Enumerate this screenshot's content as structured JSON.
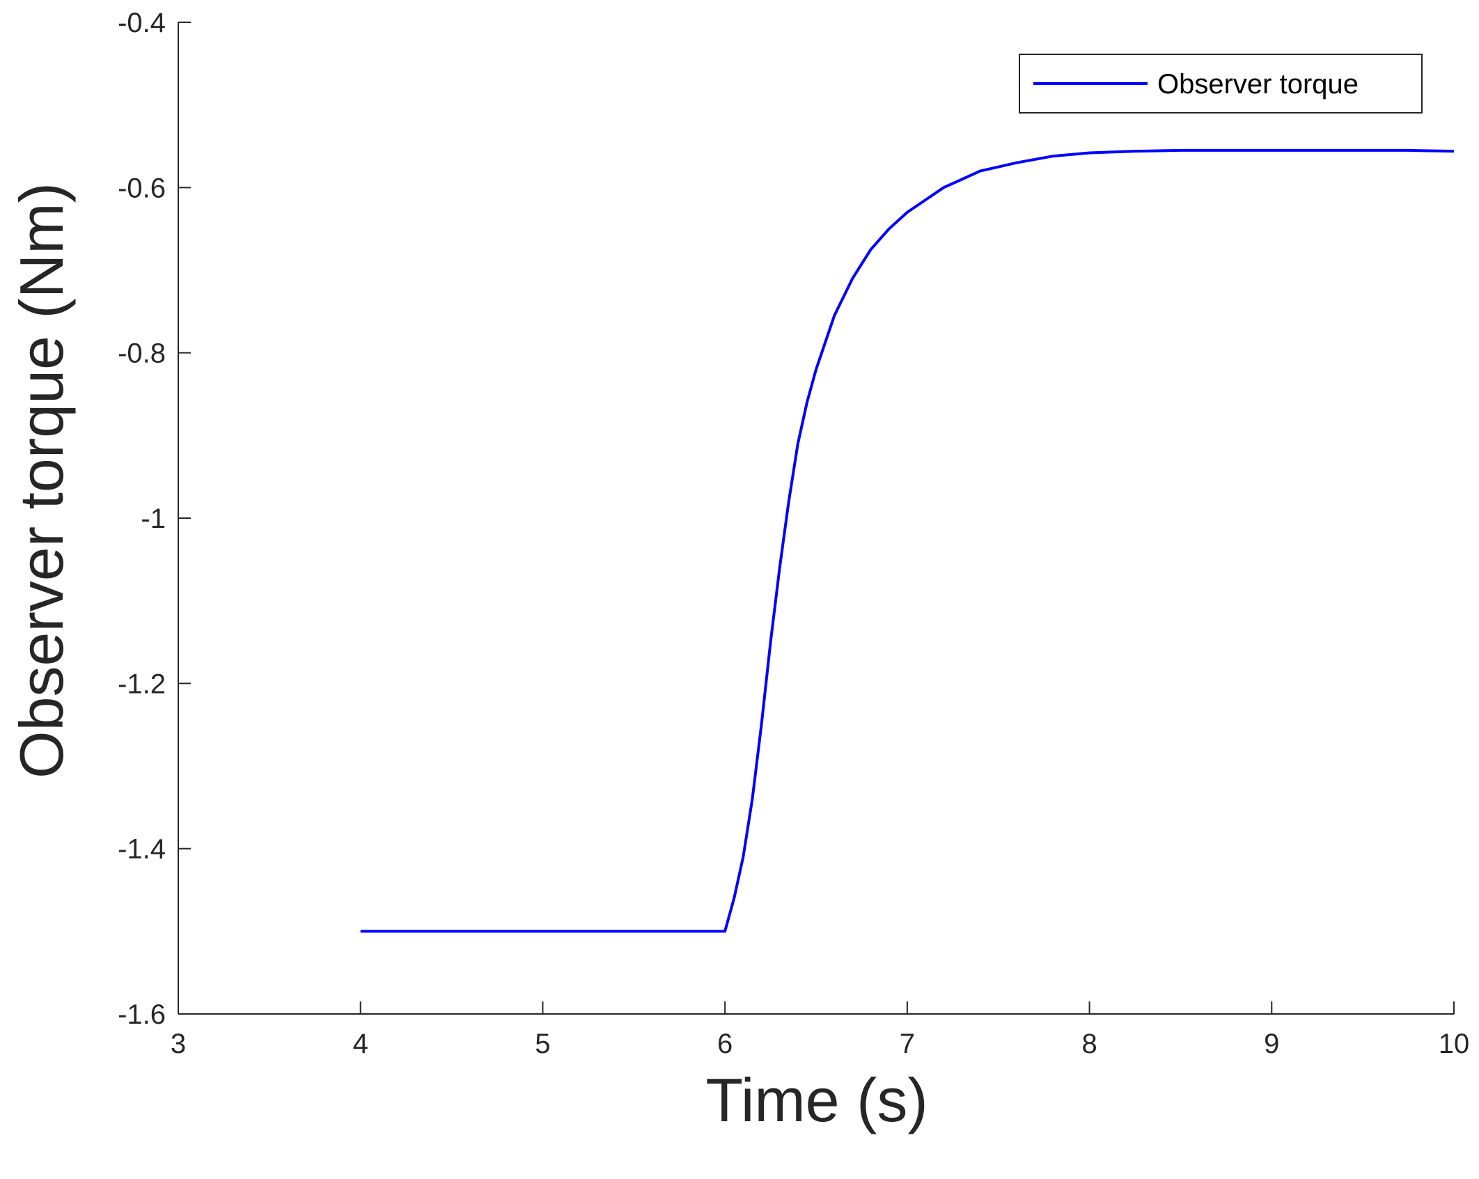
{
  "chart_data": {
    "type": "line",
    "title": "",
    "xlabel": "Time (s)",
    "ylabel": "Observer torque (Nm)",
    "xlim": [
      3,
      10
    ],
    "ylim": [
      -1.6,
      -0.4
    ],
    "xticks": [
      3,
      4,
      5,
      6,
      7,
      8,
      9,
      10
    ],
    "yticks": [
      -1.6,
      -1.4,
      -1.2,
      -1,
      -0.8,
      -0.6,
      -0.4
    ],
    "xtick_labels": [
      "3",
      "4",
      "5",
      "6",
      "7",
      "8",
      "9",
      "10"
    ],
    "ytick_labels": [
      "-1.6",
      "-1.4",
      "-1.2",
      "-1",
      "-0.8",
      "-0.6",
      "-0.4"
    ],
    "grid": false,
    "legend_position": "top-right",
    "series": [
      {
        "name": "Observer torque",
        "color": "#0000ff",
        "x": [
          4.0,
          4.25,
          4.5,
          4.75,
          5.0,
          5.25,
          5.5,
          5.75,
          6.0,
          6.05,
          6.1,
          6.15,
          6.2,
          6.25,
          6.3,
          6.35,
          6.4,
          6.45,
          6.5,
          6.6,
          6.7,
          6.8,
          6.9,
          7.0,
          7.1,
          7.2,
          7.3,
          7.4,
          7.5,
          7.6,
          7.8,
          8.0,
          8.25,
          8.5,
          8.75,
          9.0,
          9.25,
          9.5,
          9.75,
          10.0
        ],
        "y": [
          -1.5,
          -1.5,
          -1.5,
          -1.5,
          -1.5,
          -1.5,
          -1.5,
          -1.5,
          -1.5,
          -1.46,
          -1.41,
          -1.34,
          -1.25,
          -1.15,
          -1.06,
          -0.98,
          -0.91,
          -0.86,
          -0.82,
          -0.755,
          -0.71,
          -0.675,
          -0.65,
          -0.63,
          -0.615,
          -0.6,
          -0.59,
          -0.58,
          -0.575,
          -0.57,
          -0.562,
          -0.558,
          -0.556,
          -0.555,
          -0.555,
          -0.555,
          -0.555,
          -0.555,
          -0.555,
          -0.556
        ]
      }
    ]
  }
}
